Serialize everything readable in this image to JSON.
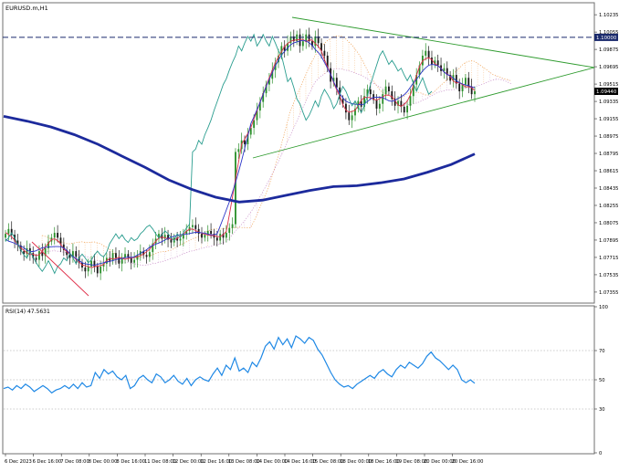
{
  "chart_data": [
    {
      "type": "candlestick",
      "symbol_label": "EURUSD.m,H1",
      "x_tick_labels": [
        "6 Dec 2023",
        "6 Dec 16:00",
        "7 Dec 08:00",
        "8 Dec 00:00",
        "8 Dec 16:00",
        "11 Dec 08:00",
        "12 Dec 00:00",
        "12 Dec 16:00",
        "13 Dec 08:00",
        "14 Dec 00:00",
        "14 Dec 16:00",
        "15 Dec 08:00",
        "18 Dec 00:00",
        "18 Dec 16:00",
        "19 Dec 08:00",
        "20 Dec 00:00",
        "20 Dec 16:00"
      ],
      "y_tick_labels": [
        "1.10235",
        "1.10055",
        "1.09875",
        "1.09695",
        "1.09515",
        "1.09335",
        "1.09155",
        "1.08975",
        "1.08795",
        "1.08615",
        "1.08435",
        "1.08255",
        "1.08075",
        "1.07895",
        "1.07715",
        "1.07535",
        "1.07355"
      ],
      "y_range": [
        1.0725,
        1.1035
      ],
      "highlight_level": {
        "value": 1.1,
        "label": "1.10000",
        "style": "dashed",
        "color": "#1a2a6c"
      },
      "current_price": {
        "value": 1.0944,
        "label": "1.09440"
      },
      "close_series": [
        1.0796,
        1.0801,
        1.0795,
        1.0789,
        1.0784,
        1.0778,
        1.0775,
        1.0781,
        1.0776,
        1.0771,
        1.0769,
        1.0778,
        1.0773,
        1.0781,
        1.0788,
        1.0792,
        1.0797,
        1.0792,
        1.0785,
        1.0779,
        1.0774,
        1.0771,
        1.0778,
        1.0772,
        1.0766,
        1.0761,
        1.0757,
        1.0762,
        1.0768,
        1.0762,
        1.0755,
        1.0762,
        1.0765,
        1.0771,
        1.0768,
        1.0776,
        1.0771,
        1.0765,
        1.0771,
        1.0775,
        1.0771,
        1.0766,
        1.0769,
        1.0774,
        1.0778,
        1.0774,
        1.0772,
        1.0777,
        1.0786,
        1.0791,
        1.0796,
        1.0791,
        1.0795,
        1.079,
        1.0787,
        1.0792,
        1.0789,
        1.0791,
        1.0796,
        1.0799,
        1.0803,
        1.0805,
        1.0801,
        1.0796,
        1.0792,
        1.0795,
        1.0799,
        1.0796,
        1.0792,
        1.0789,
        1.0796,
        1.0792,
        1.0797,
        1.0802,
        1.0806,
        1.0881,
        1.0884,
        1.0893,
        1.0889,
        1.0899,
        1.0906,
        1.0914,
        1.0924,
        1.0933,
        1.0942,
        1.0951,
        1.0957,
        1.0966,
        1.0974,
        1.0981,
        1.0991,
        1.0986,
        1.0994,
        1.1001,
        1.0996,
        1.1003,
        1.0991,
        1.0996,
        1.1003,
        1.0996,
        1.0991,
        1.1001,
        1.0994,
        1.0986,
        1.0981,
        1.0968,
        1.0954,
        1.0958,
        1.0948,
        1.0936,
        1.0931,
        1.0922,
        1.0914,
        1.0919,
        1.0926,
        1.0934,
        1.0928,
        1.0939,
        1.0946,
        1.0941,
        1.0935,
        1.0926,
        1.0931,
        1.0941,
        1.0949,
        1.0944,
        1.0936,
        1.0929,
        1.0934,
        1.0928,
        1.0922,
        1.0929,
        1.0939,
        1.0951,
        1.0961,
        1.0971,
        1.0981,
        1.0986,
        1.0979,
        1.0972,
        1.0976,
        1.0971,
        1.0965,
        1.0968,
        1.0961,
        1.0955,
        1.0961,
        1.0952,
        1.0944,
        1.0951,
        1.0958,
        1.0949,
        1.0941,
        1.0944
      ],
      "moving_average_series": [
        1.0918,
        1.0913,
        1.0907,
        1.0899,
        1.0889,
        1.0877,
        1.0865,
        1.0852,
        1.0842,
        1.0834,
        1.0829,
        1.0831,
        1.0836,
        1.0841,
        1.0845,
        1.0846,
        1.0849,
        1.0853,
        1.086,
        1.0868,
        1.0879
      ]
    },
    {
      "type": "line",
      "indicator_label": "RSI(14) 47.5631",
      "y_tick_labels": [
        "100",
        "70",
        "50",
        "30",
        "0"
      ],
      "y_range": [
        0,
        100
      ],
      "levels": [
        70,
        50,
        30
      ],
      "values": [
        44,
        45,
        43,
        46,
        44,
        47,
        45,
        42,
        44,
        46,
        44,
        41,
        43,
        44,
        46,
        44,
        47,
        44,
        48,
        45,
        46,
        55,
        51,
        57,
        54,
        56,
        52,
        50,
        53,
        44,
        46,
        51,
        53,
        50,
        48,
        54,
        52,
        48,
        50,
        53,
        49,
        47,
        51,
        46,
        50,
        52,
        50,
        49,
        54,
        58,
        53,
        60,
        57,
        65,
        56,
        58,
        55,
        62,
        59,
        65,
        73,
        76,
        71,
        79,
        74,
        78,
        72,
        80,
        78,
        75,
        79,
        77,
        71,
        67,
        61,
        55,
        50,
        47,
        45,
        46,
        44,
        47,
        49,
        51,
        53,
        51,
        55,
        57,
        54,
        52,
        57,
        60,
        58,
        62,
        60,
        58,
        61,
        66,
        69,
        65,
        63,
        60,
        57,
        60,
        57,
        50,
        48,
        50,
        47.6
      ]
    }
  ]
}
